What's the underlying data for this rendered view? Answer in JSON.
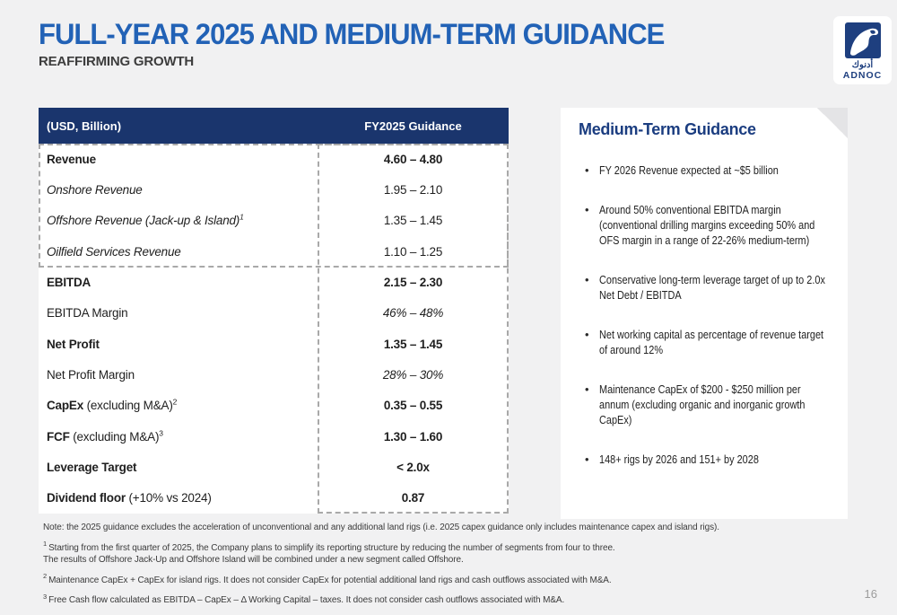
{
  "slide": {
    "title": "FULL-YEAR 2025 AND MEDIUM-TERM GUIDANCE",
    "subtitle": "REAFFIRMING GROWTH",
    "page_number": "16"
  },
  "logo": {
    "arabic": "أدنوك",
    "name": "ADNOC",
    "falcon_icon": "falcon-icon"
  },
  "colors": {
    "title_blue": "#2262b6",
    "table_header_navy": "#1a356d",
    "panel_heading_blue": "#1b3d80",
    "dashed_border_gray": "#a9a9a9",
    "logo_blue": "#1e3f7f"
  },
  "table": {
    "header": {
      "label": "(USD, Billion)",
      "value": "FY2025 Guidance"
    },
    "rows": [
      {
        "label": "Revenue",
        "suffix": "",
        "sup": "",
        "value": "4.60 – 4.80",
        "label_style": "bold",
        "value_style": "bold"
      },
      {
        "label": "Onshore Revenue",
        "suffix": "",
        "sup": "",
        "value": "1.95 – 2.10",
        "label_style": "italic",
        "value_style": "normal"
      },
      {
        "label": "Offshore Revenue (Jack-up & Island)",
        "suffix": "",
        "sup": "1",
        "value": "1.35 – 1.45",
        "label_style": "italic",
        "value_style": "normal"
      },
      {
        "label": "Oilfield Services Revenue",
        "suffix": "",
        "sup": "",
        "value": "1.10 – 1.25",
        "label_style": "italic",
        "value_style": "normal"
      },
      {
        "label": "EBITDA",
        "suffix": "",
        "sup": "",
        "value": "2.15 – 2.30",
        "label_style": "bold",
        "value_style": "bold"
      },
      {
        "label": "EBITDA Margin",
        "suffix": "",
        "sup": "",
        "value": "46% – 48%",
        "label_style": "normal",
        "value_style": "italic"
      },
      {
        "label": "Net Profit",
        "suffix": "",
        "sup": "",
        "value": "1.35 – 1.45",
        "label_style": "bold",
        "value_style": "bold"
      },
      {
        "label": "Net Profit Margin",
        "suffix": "",
        "sup": "",
        "value": "28% – 30%",
        "label_style": "normal",
        "value_style": "italic"
      },
      {
        "label": "CapEx",
        "suffix": " (excluding M&A)",
        "sup": "2",
        "value": "0.35 – 0.55",
        "label_style": "bold",
        "value_style": "bold"
      },
      {
        "label": "FCF",
        "suffix": " (excluding M&A)",
        "sup": "3",
        "value": "1.30 – 1.60",
        "label_style": "bold",
        "value_style": "bold"
      },
      {
        "label": "Leverage Target",
        "suffix": "",
        "sup": "",
        "value": "< 2.0x",
        "label_style": "bold",
        "value_style": "bold"
      },
      {
        "label": "Dividend floor",
        "suffix": " (+10% vs 2024)",
        "sup": "",
        "value": "0.87",
        "label_style": "bold",
        "value_style": "bold"
      }
    ]
  },
  "sidebar": {
    "title": "Medium-Term Guidance",
    "bullets": [
      {
        "lines": [
          "FY 2026 Revenue expected at ~$5 billion"
        ]
      },
      {
        "lines": [
          "Around 50% conventional EBITDA margin",
          "(conventional drilling margins exceeding 50% and",
          "OFS margin in a range of 22-26% medium-term)"
        ]
      },
      {
        "lines": [
          "Conservative long-term leverage target of up to 2.0x",
          "Net Debt / EBITDA"
        ]
      },
      {
        "lines": [
          "Net working capital as percentage of revenue target",
          "of around 12%"
        ]
      },
      {
        "lines": [
          "Maintenance CapEx of $200 - $250 million per",
          "annum (excluding organic and inorganic growth",
          "CapEx)"
        ]
      },
      {
        "lines": [
          "148+ rigs by 2026 and 151+ by 2028"
        ]
      }
    ]
  },
  "footnotes": [
    {
      "sup": "",
      "lines": [
        "Note: the 2025 guidance excludes the acceleration of unconventional and any additional land rigs (i.e. 2025 capex guidance only includes maintenance capex and island rigs)."
      ]
    },
    {
      "sup": "1",
      "lines": [
        "Starting from the first quarter of 2025, the Company plans to simplify its reporting structure by reducing the number of segments from four to three.",
        "The results of Offshore Jack-Up and Offshore Island will be combined under a new segment called Offshore."
      ]
    },
    {
      "sup": "2",
      "lines": [
        "Maintenance CapEx + CapEx for island rigs. It does not consider CapEx for potential additional land rigs and cash outflows associated with M&A."
      ]
    },
    {
      "sup": "3",
      "lines": [
        "Free Cash flow calculated as EBITDA – CapEx – Δ Working Capital – taxes. It does not consider cash outflows associated with M&A."
      ]
    }
  ]
}
